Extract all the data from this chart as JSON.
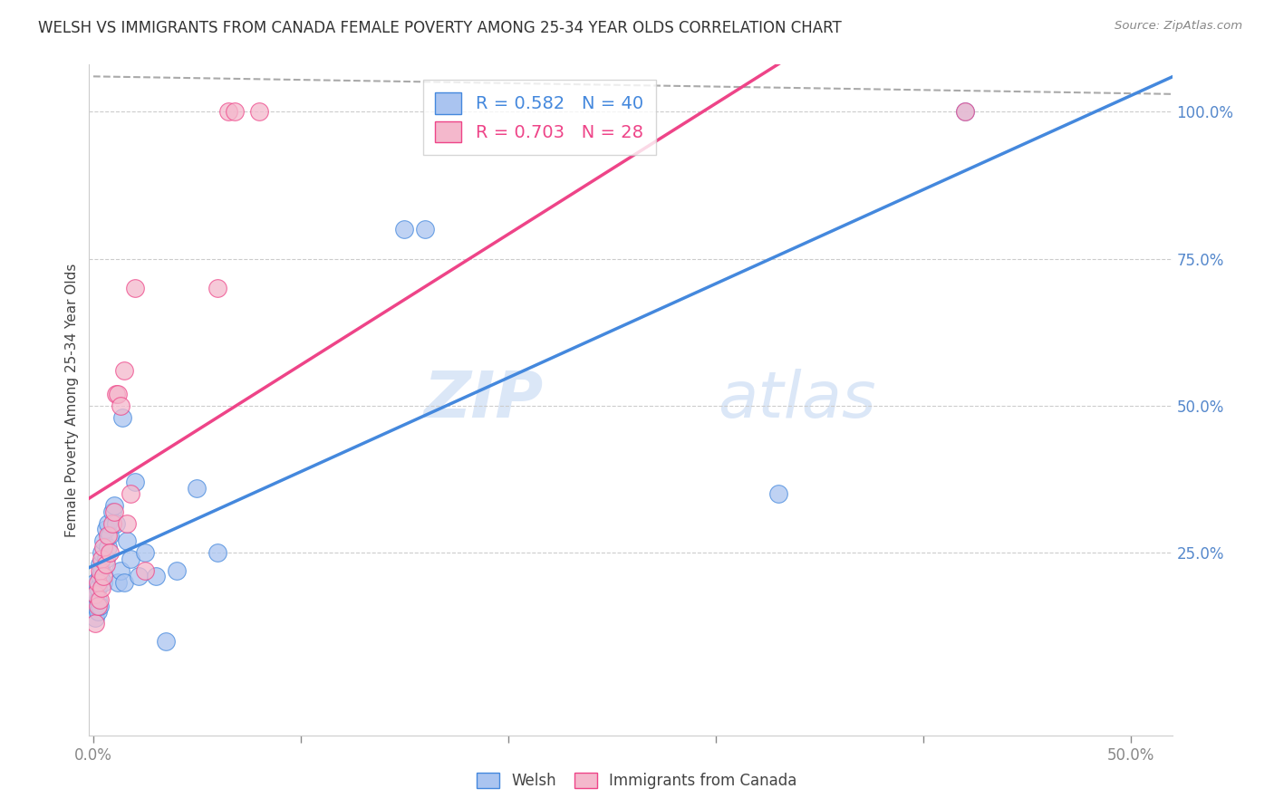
{
  "title": "WELSH VS IMMIGRANTS FROM CANADA FEMALE POVERTY AMONG 25-34 YEAR OLDS CORRELATION CHART",
  "source": "Source: ZipAtlas.com",
  "ylabel": "Female Poverty Among 25-34 Year Olds",
  "xlim": [
    -0.002,
    0.52
  ],
  "ylim": [
    -0.06,
    1.08
  ],
  "xticks": [
    0.0,
    0.1,
    0.2,
    0.3,
    0.4,
    0.5
  ],
  "xtick_labels": [
    "0.0%",
    "",
    "",
    "",
    "",
    "50.0%"
  ],
  "yticks_right": [
    0.25,
    0.5,
    0.75,
    1.0
  ],
  "ytick_labels_right": [
    "25.0%",
    "50.0%",
    "75.0%",
    "100.0%"
  ],
  "welsh_color": "#aac4f0",
  "canada_color": "#f4b8cc",
  "welsh_line_color": "#4488dd",
  "canada_line_color": "#ee4488",
  "legend_welsh_R": "0.582",
  "legend_welsh_N": "40",
  "legend_canada_R": "0.703",
  "legend_canada_N": "28",
  "legend_color_welsh": "#4488dd",
  "legend_color_canada": "#ee4488",
  "watermark_zip": "ZIP",
  "watermark_atlas": "atlas",
  "welsh_x": [
    0.001,
    0.001,
    0.001,
    0.001,
    0.002,
    0.002,
    0.002,
    0.003,
    0.003,
    0.003,
    0.004,
    0.004,
    0.005,
    0.005,
    0.006,
    0.006,
    0.007,
    0.007,
    0.008,
    0.009,
    0.01,
    0.011,
    0.012,
    0.013,
    0.014,
    0.015,
    0.016,
    0.018,
    0.02,
    0.022,
    0.025,
    0.03,
    0.035,
    0.04,
    0.05,
    0.06,
    0.15,
    0.16,
    0.33,
    0.42
  ],
  "welsh_y": [
    0.14,
    0.16,
    0.18,
    0.2,
    0.15,
    0.17,
    0.19,
    0.16,
    0.21,
    0.23,
    0.22,
    0.25,
    0.2,
    0.27,
    0.24,
    0.29,
    0.26,
    0.3,
    0.28,
    0.32,
    0.33,
    0.3,
    0.2,
    0.22,
    0.48,
    0.2,
    0.27,
    0.24,
    0.37,
    0.21,
    0.25,
    0.21,
    0.1,
    0.22,
    0.36,
    0.25,
    0.8,
    0.8,
    0.35,
    1.0
  ],
  "canada_x": [
    0.001,
    0.001,
    0.002,
    0.002,
    0.003,
    0.003,
    0.004,
    0.004,
    0.005,
    0.005,
    0.006,
    0.007,
    0.008,
    0.009,
    0.01,
    0.011,
    0.012,
    0.013,
    0.015,
    0.016,
    0.018,
    0.02,
    0.025,
    0.06,
    0.065,
    0.068,
    0.08,
    0.42
  ],
  "canada_y": [
    0.13,
    0.18,
    0.16,
    0.2,
    0.17,
    0.22,
    0.19,
    0.24,
    0.21,
    0.26,
    0.23,
    0.28,
    0.25,
    0.3,
    0.32,
    0.52,
    0.52,
    0.5,
    0.56,
    0.3,
    0.35,
    0.7,
    0.22,
    0.7,
    1.0,
    1.0,
    1.0,
    1.0
  ],
  "ref_line_x": [
    0.0,
    0.5
  ],
  "ref_line_y": [
    1.05,
    1.0
  ],
  "welsh_trend": [
    -0.038,
    2.22
  ],
  "canada_trend": [
    -0.018,
    2.48
  ]
}
